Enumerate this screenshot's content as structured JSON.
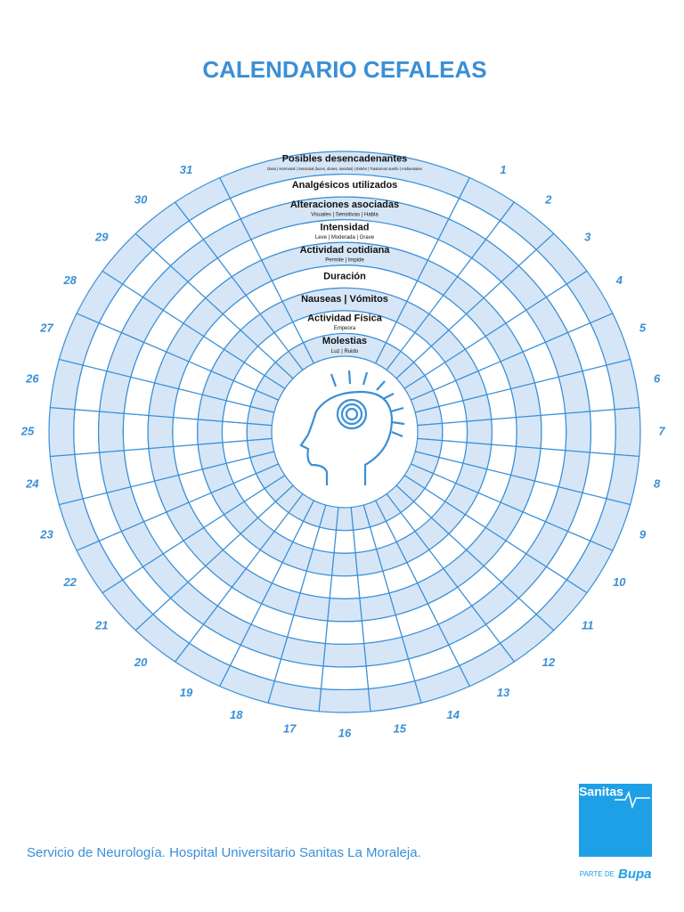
{
  "title": "CALENDARIO CEFALEAS",
  "rings": [
    {
      "label": "Posibles desencadenantes",
      "sublabel": "Dieta | Hormonal | Sensorial (luces, olores, sonidos) | Estrés | Trastornos sueño | Ambientales"
    },
    {
      "label": "Analgésicos utilizados"
    },
    {
      "label": "Alteraciones asociadas",
      "sublabel": "Visuales | Sensitivas | Habla"
    },
    {
      "label": "Intensidad",
      "sublabel": "Leve | Moderada | Grave"
    },
    {
      "label": "Actividad cotidiana",
      "sublabel": "Permite | Impide"
    },
    {
      "label": "Duración"
    },
    {
      "label": "Nauseas | Vómitos"
    },
    {
      "label": "Actividad Física",
      "sublabel": "Empeora"
    },
    {
      "label": "Molestias",
      "sublabel": "Luz | Ruido"
    }
  ],
  "days": [
    1,
    2,
    3,
    4,
    5,
    6,
    7,
    8,
    9,
    10,
    11,
    12,
    13,
    14,
    15,
    16,
    17,
    18,
    19,
    20,
    21,
    22,
    23,
    24,
    25,
    26,
    27,
    28,
    29,
    30,
    31
  ],
  "footer": "Servicio de Neurología. Hospital Universitario Sanitas La Moraleja.",
  "logo": {
    "brand": "Sanitas",
    "tagline": "PARTE DE",
    "parent": "Bupa"
  }
}
